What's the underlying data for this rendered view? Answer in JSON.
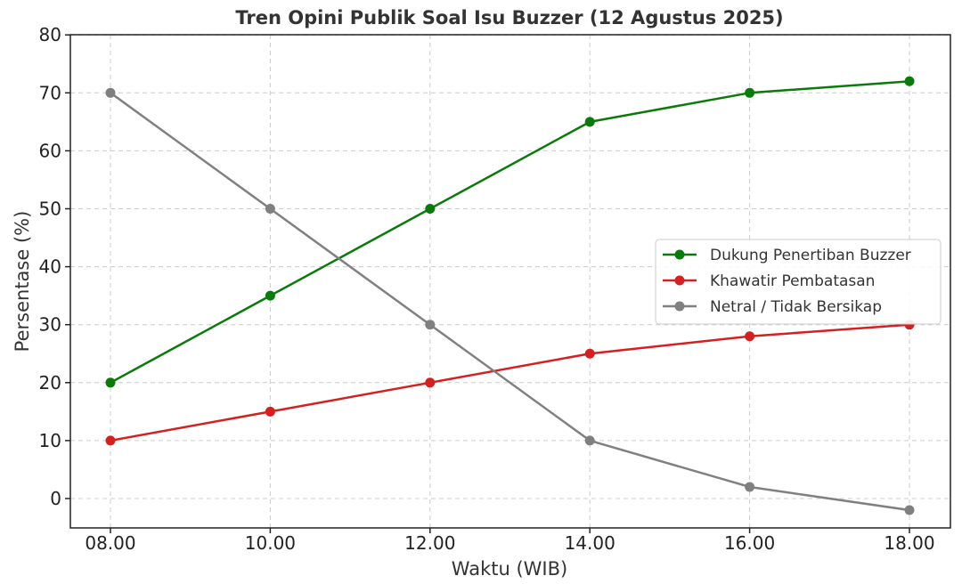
{
  "chart_data": {
    "type": "line",
    "title": "Tren Opini Publik Soal Isu Buzzer (12 Agustus 2025)",
    "xlabel": "Waktu (WIB)",
    "ylabel": "Persentase (%)",
    "x": [
      "08.00",
      "10.00",
      "12.00",
      "14.00",
      "16.00",
      "18.00"
    ],
    "ylim": [
      -5,
      80
    ],
    "yticks": [
      0,
      10,
      20,
      30,
      40,
      50,
      60,
      70,
      80
    ],
    "grid": true,
    "legend_position": "center-right",
    "series": [
      {
        "name": "Dukung Penertiban Buzzer",
        "color": "#0a7a0a",
        "values": [
          20,
          35,
          50,
          65,
          70,
          72
        ]
      },
      {
        "name": "Khawatir Pembatasan",
        "color": "#d42020",
        "values": [
          10,
          15,
          20,
          25,
          28,
          30
        ]
      },
      {
        "name": "Netral / Tidak Bersikap",
        "color": "#808080",
        "values": [
          70,
          50,
          30,
          10,
          2,
          -2
        ]
      }
    ]
  }
}
